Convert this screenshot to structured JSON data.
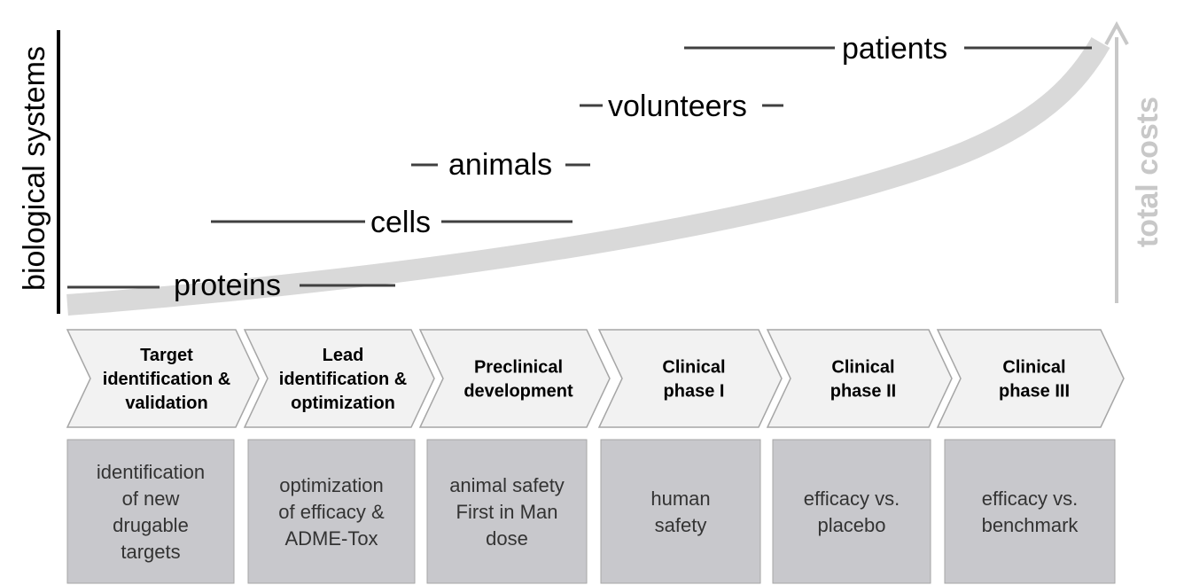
{
  "axis": {
    "y_label": "biological systems",
    "cost_label": "total costs"
  },
  "colors": {
    "curve": "#d9d9d9",
    "chevron_fill": "#f2f2f2",
    "chevron_stroke": "#a6a6a6",
    "box_fill": "#c8c8cc",
    "box_stroke": "#a6a6a6",
    "level_line": "#404040",
    "cost_arrow": "#c8c8c8"
  },
  "levels": [
    {
      "label": "proteins"
    },
    {
      "label": "cells"
    },
    {
      "label": "animals"
    },
    {
      "label": "volunteers"
    },
    {
      "label": "patients"
    }
  ],
  "phases": [
    {
      "label_lines": [
        "Target",
        "identification &",
        "validation"
      ],
      "description_lines": [
        "identification",
        "of new",
        "drugable",
        "targets"
      ]
    },
    {
      "label_lines": [
        "Lead",
        "identification &",
        "optimization"
      ],
      "description_lines": [
        "optimization",
        "of efficacy &",
        "ADME-Tox"
      ]
    },
    {
      "label_lines": [
        "Preclinical",
        "development"
      ],
      "description_lines": [
        "animal safety",
        "First in Man",
        "dose"
      ]
    },
    {
      "label_lines": [
        "Clinical",
        "phase I"
      ],
      "description_lines": [
        "human",
        "safety"
      ]
    },
    {
      "label_lines": [
        "Clinical",
        "phase II"
      ],
      "description_lines": [
        "efficacy vs.",
        "placebo"
      ]
    },
    {
      "label_lines": [
        "Clinical",
        "phase III"
      ],
      "description_lines": [
        "efficacy vs.",
        "benchmark"
      ]
    }
  ]
}
